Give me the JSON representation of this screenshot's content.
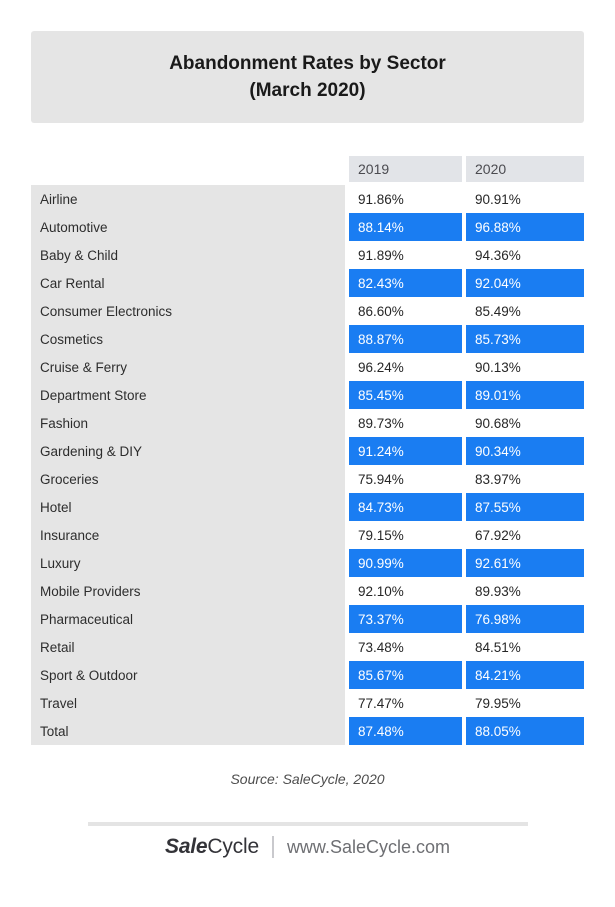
{
  "title": {
    "line1": "Abandonment Rates by Sector",
    "line2": "(March 2020)"
  },
  "table": {
    "columns": [
      "2019",
      "2020"
    ],
    "highlight_color": "#1a7df2",
    "rows": [
      {
        "sector": "Airline",
        "y2019": "91.86%",
        "y2020": "90.91%",
        "highlighted": false
      },
      {
        "sector": "Automotive",
        "y2019": "88.14%",
        "y2020": "96.88%",
        "highlighted": true
      },
      {
        "sector": "Baby & Child",
        "y2019": "91.89%",
        "y2020": "94.36%",
        "highlighted": false
      },
      {
        "sector": "Car Rental",
        "y2019": "82.43%",
        "y2020": "92.04%",
        "highlighted": true
      },
      {
        "sector": "Consumer Electronics",
        "y2019": "86.60%",
        "y2020": "85.49%",
        "highlighted": false
      },
      {
        "sector": "Cosmetics",
        "y2019": "88.87%",
        "y2020": "85.73%",
        "highlighted": true
      },
      {
        "sector": "Cruise & Ferry",
        "y2019": "96.24%",
        "y2020": "90.13%",
        "highlighted": false
      },
      {
        "sector": "Department Store",
        "y2019": "85.45%",
        "y2020": "89.01%",
        "highlighted": true
      },
      {
        "sector": "Fashion",
        "y2019": "89.73%",
        "y2020": "90.68%",
        "highlighted": false
      },
      {
        "sector": "Gardening & DIY",
        "y2019": "91.24%",
        "y2020": "90.34%",
        "highlighted": true
      },
      {
        "sector": "Groceries",
        "y2019": "75.94%",
        "y2020": "83.97%",
        "highlighted": false
      },
      {
        "sector": "Hotel",
        "y2019": "84.73%",
        "y2020": "87.55%",
        "highlighted": true
      },
      {
        "sector": "Insurance",
        "y2019": "79.15%",
        "y2020": "67.92%",
        "highlighted": false
      },
      {
        "sector": "Luxury",
        "y2019": "90.99%",
        "y2020": "92.61%",
        "highlighted": true
      },
      {
        "sector": "Mobile Providers",
        "y2019": "92.10%",
        "y2020": "89.93%",
        "highlighted": false
      },
      {
        "sector": "Pharmaceutical",
        "y2019": "73.37%",
        "y2020": "76.98%",
        "highlighted": true
      },
      {
        "sector": "Retail",
        "y2019": "73.48%",
        "y2020": "84.51%",
        "highlighted": false
      },
      {
        "sector": "Sport & Outdoor",
        "y2019": "85.67%",
        "y2020": "84.21%",
        "highlighted": true
      },
      {
        "sector": "Travel",
        "y2019": "77.47%",
        "y2020": "79.95%",
        "highlighted": false
      },
      {
        "sector": "Total",
        "y2019": "87.48%",
        "y2020": "88.05%",
        "highlighted": true
      }
    ]
  },
  "footer": {
    "source": "Source: SaleCycle, 2020",
    "logo_bold": "Sale",
    "logo_rest": "Cycle",
    "website": "www.SaleCycle.com"
  },
  "chart_data": {
    "type": "table",
    "title": "Abandonment Rates by Sector (March 2020)",
    "unit": "%",
    "categories": [
      "Airline",
      "Automotive",
      "Baby & Child",
      "Car Rental",
      "Consumer Electronics",
      "Cosmetics",
      "Cruise & Ferry",
      "Department Store",
      "Fashion",
      "Gardening & DIY",
      "Groceries",
      "Hotel",
      "Insurance",
      "Luxury",
      "Mobile Providers",
      "Pharmaceutical",
      "Retail",
      "Sport & Outdoor",
      "Travel",
      "Total"
    ],
    "series": [
      {
        "name": "2019",
        "values": [
          91.86,
          88.14,
          91.89,
          82.43,
          86.6,
          88.87,
          96.24,
          85.45,
          89.73,
          91.24,
          75.94,
          84.73,
          79.15,
          90.99,
          92.1,
          73.37,
          73.48,
          85.67,
          77.47,
          87.48
        ]
      },
      {
        "name": "2020",
        "values": [
          90.91,
          96.88,
          94.36,
          92.04,
          85.49,
          85.73,
          90.13,
          89.01,
          90.68,
          90.34,
          83.97,
          87.55,
          67.92,
          92.61,
          89.93,
          76.98,
          84.51,
          84.21,
          79.95,
          88.05
        ]
      }
    ],
    "highlighted_rows": [
      "Automotive",
      "Car Rental",
      "Cosmetics",
      "Department Store",
      "Gardening & DIY",
      "Hotel",
      "Luxury",
      "Pharmaceutical",
      "Sport & Outdoor",
      "Total"
    ],
    "source": "Source: SaleCycle, 2020"
  }
}
